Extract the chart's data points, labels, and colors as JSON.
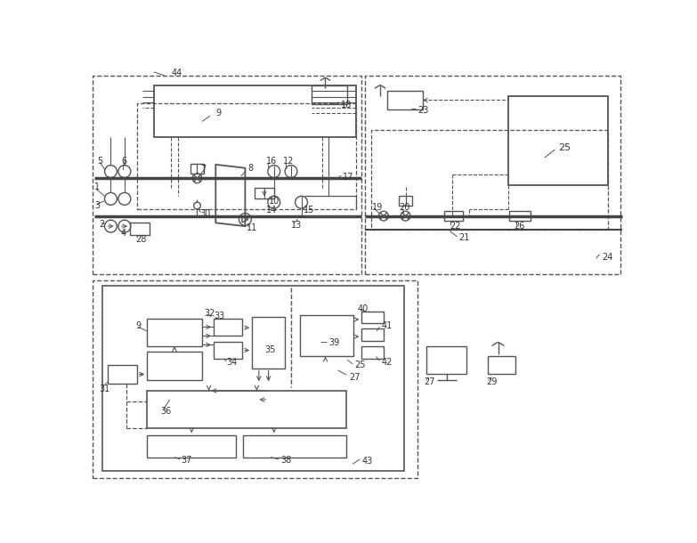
{
  "bg_color": "#ffffff",
  "lc": "#555555",
  "figsize": [
    7.83,
    6.1
  ],
  "dpi": 100
}
